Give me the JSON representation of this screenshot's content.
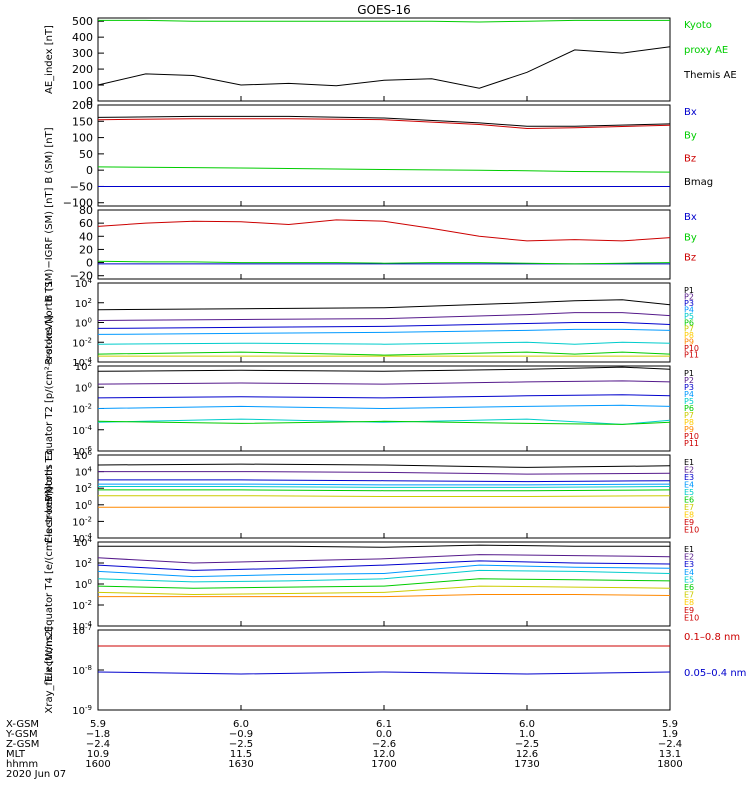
{
  "title": "GOES-16",
  "chart_data": [
    {
      "type": "line",
      "ylabel": "AE_index [nT]",
      "ylim": [
        0,
        520
      ],
      "yticks": [
        "0",
        "100",
        "200",
        "300",
        "400",
        "500"
      ],
      "x": [
        1600,
        1610,
        1620,
        1630,
        1640,
        1650,
        1700,
        1710,
        1720,
        1730,
        1740,
        1750,
        1800
      ],
      "series": [
        {
          "name": "Kyoto proxy AE",
          "color": "#00cc00",
          "values": [
            505,
            505,
            500,
            500,
            500,
            500,
            500,
            500,
            495,
            500,
            505,
            505,
            505
          ]
        },
        {
          "name": "Themis AE",
          "color": "#000000",
          "values": [
            100,
            170,
            160,
            100,
            110,
            95,
            130,
            140,
            80,
            180,
            320,
            300,
            340
          ]
        }
      ],
      "legend": [
        {
          "text": "Kyoto",
          "color": "#00cc00"
        },
        {
          "text": "proxy AE",
          "color": "#00cc00"
        },
        {
          "text": "Themis AE",
          "color": "#000000"
        }
      ]
    },
    {
      "type": "line",
      "ylabel": "B (SM) [nT]",
      "ylim": [
        -110,
        200
      ],
      "yticks": [
        "−100",
        "−50",
        "0",
        "50",
        "100",
        "150",
        "200"
      ],
      "x": [
        1600,
        1620,
        1640,
        1700,
        1720,
        1730,
        1740,
        1800
      ],
      "series": [
        {
          "name": "Bx",
          "color": "#0000cc",
          "values": [
            -50,
            -50,
            -50,
            -50,
            -50,
            -50,
            -50,
            -50
          ]
        },
        {
          "name": "By",
          "color": "#00cc00",
          "values": [
            10,
            8,
            5,
            2,
            0,
            -2,
            -4,
            -6
          ]
        },
        {
          "name": "Bz",
          "color": "#cc0000",
          "values": [
            155,
            158,
            158,
            155,
            140,
            128,
            130,
            138
          ]
        },
        {
          "name": "Bmag",
          "color": "#000000",
          "values": [
            162,
            165,
            165,
            160,
            145,
            135,
            135,
            142
          ]
        }
      ],
      "legend": [
        {
          "text": "Bx",
          "color": "#0000cc"
        },
        {
          "text": "By",
          "color": "#00cc00"
        },
        {
          "text": "Bz",
          "color": "#cc0000"
        },
        {
          "text": "Bmag",
          "color": "#000000"
        }
      ]
    },
    {
      "type": "line",
      "ylabel": "B (SM)−IGRF (SM) [nT]",
      "ylim": [
        -25,
        80
      ],
      "yticks": [
        "−20",
        "0",
        "20",
        "40",
        "60",
        "80"
      ],
      "x": [
        1600,
        1610,
        1620,
        1630,
        1640,
        1650,
        1700,
        1710,
        1720,
        1730,
        1740,
        1750,
        1800
      ],
      "series": [
        {
          "name": "Bx",
          "color": "#0000cc",
          "values": [
            -2,
            -2,
            -2,
            -2,
            -2,
            -2,
            -2,
            -2,
            -2,
            -2,
            -2,
            -2,
            -2
          ]
        },
        {
          "name": "By",
          "color": "#00cc00",
          "values": [
            2,
            1,
            1,
            0,
            0,
            0,
            -1,
            0,
            0,
            -1,
            -2,
            -1,
            0
          ]
        },
        {
          "name": "Bz",
          "color": "#cc0000",
          "values": [
            55,
            60,
            63,
            62,
            58,
            65,
            63,
            52,
            40,
            33,
            35,
            33,
            38
          ]
        }
      ],
      "legend": [
        {
          "text": "Bx",
          "color": "#0000cc"
        },
        {
          "text": "By",
          "color": "#00cc00"
        },
        {
          "text": "Bz",
          "color": "#cc0000"
        }
      ]
    },
    {
      "type": "line",
      "ylabel": "Protons North T1",
      "ylog": true,
      "ylim_exp": [
        -4,
        4
      ],
      "yticks": [
        "10^4",
        "10^2",
        "10^0",
        "10^-2",
        "10^-4"
      ],
      "x": [
        1600,
        1630,
        1700,
        1730,
        1740,
        1750,
        1800
      ],
      "series": [
        {
          "name": "P1",
          "color": "#000000",
          "values_log10": [
            1.3,
            1.4,
            1.5,
            2.0,
            2.2,
            2.3,
            1.8
          ]
        },
        {
          "name": "P2",
          "color": "#551a8b",
          "values_log10": [
            0.2,
            0.3,
            0.4,
            0.8,
            1.0,
            1.0,
            0.7
          ]
        },
        {
          "name": "P3",
          "color": "#0000cc",
          "values_log10": [
            -0.6,
            -0.5,
            -0.4,
            -0.1,
            0.0,
            0.0,
            -0.2
          ]
        },
        {
          "name": "P4",
          "color": "#0099ff",
          "values_log10": [
            -1.2,
            -1.1,
            -1.0,
            -0.8,
            -0.7,
            -0.7,
            -0.8
          ]
        },
        {
          "name": "P5",
          "color": "#00cccc",
          "values_log10": [
            -2.2,
            -2.1,
            -2.2,
            -2.0,
            -2.2,
            -2.0,
            -2.1
          ]
        },
        {
          "name": "P6",
          "color": "#00cc00",
          "values_log10": [
            -3.2,
            -3.0,
            -3.3,
            -3.0,
            -3.2,
            -3.0,
            -3.2
          ]
        },
        {
          "name": "P7",
          "color": "#cccc00",
          "values_log10": [
            -3.4,
            -3.4,
            -3.4,
            -3.4,
            -3.4,
            -3.4,
            -3.4
          ]
        }
      ],
      "legend": [
        {
          "text": "P1",
          "color": "#000000"
        },
        {
          "text": "P2",
          "color": "#551a8b"
        },
        {
          "text": "P3",
          "color": "#0000cc"
        },
        {
          "text": "P4",
          "color": "#0099ff"
        },
        {
          "text": "P5",
          "color": "#00cccc"
        },
        {
          "text": "P6",
          "color": "#00cc00"
        },
        {
          "text": "P7",
          "color": "#cccc00"
        },
        {
          "text": "P8",
          "color": "#ffcc00"
        },
        {
          "text": "P9",
          "color": "#ff8800"
        },
        {
          "text": "P10",
          "color": "#cc0000"
        },
        {
          "text": "P11",
          "color": "#cc0000"
        }
      ]
    },
    {
      "type": "line",
      "ylabel": "Protons Equator T2 [p/(cm²-s-sr-keV)]",
      "ylog": true,
      "ylim_exp": [
        -6,
        2
      ],
      "yticks": [
        "10^2",
        "10^0",
        "10^-2",
        "10^-4",
        "10^-6"
      ],
      "x": [
        1600,
        1630,
        1700,
        1730,
        1750,
        1800
      ],
      "series": [
        {
          "name": "P1",
          "color": "#000000",
          "values_log10": [
            1.5,
            1.6,
            1.5,
            1.7,
            1.9,
            1.7
          ]
        },
        {
          "name": "P2",
          "color": "#551a8b",
          "values_log10": [
            0.3,
            0.4,
            0.3,
            0.5,
            0.6,
            0.5
          ]
        },
        {
          "name": "P3",
          "color": "#0000cc",
          "values_log10": [
            -1.0,
            -0.9,
            -1.0,
            -0.8,
            -0.7,
            -0.8
          ]
        },
        {
          "name": "P4",
          "color": "#0099ff",
          "values_log10": [
            -2.0,
            -1.8,
            -2.0,
            -1.8,
            -1.7,
            -1.8
          ]
        },
        {
          "name": "P5",
          "color": "#00cccc",
          "values_log10": [
            -3.3,
            -3.0,
            -3.3,
            -3.0,
            -3.5,
            -3.1
          ]
        },
        {
          "name": "P6",
          "color": "#00cc00",
          "values_log10": [
            -3.2,
            -3.4,
            -3.2,
            -3.4,
            -3.5,
            -3.3
          ]
        }
      ],
      "legend": [
        {
          "text": "P1",
          "color": "#000000"
        },
        {
          "text": "P2",
          "color": "#551a8b"
        },
        {
          "text": "P3",
          "color": "#0000cc"
        },
        {
          "text": "P4",
          "color": "#0099ff"
        },
        {
          "text": "P5",
          "color": "#00cccc"
        },
        {
          "text": "P6",
          "color": "#00cc00"
        },
        {
          "text": "P7",
          "color": "#cccc00"
        },
        {
          "text": "P8",
          "color": "#ffcc00"
        },
        {
          "text": "P9",
          "color": "#ff8800"
        },
        {
          "text": "P10",
          "color": "#cc0000"
        },
        {
          "text": "P11",
          "color": "#cc0000"
        }
      ]
    },
    {
      "type": "line",
      "ylabel": "Electrons North T3",
      "ylog": true,
      "ylim_exp": [
        -4,
        6
      ],
      "yticks": [
        "10^6",
        "10^4",
        "10^2",
        "10^0",
        "10^-2",
        "10^-4"
      ],
      "x": [
        1600,
        1630,
        1700,
        1730,
        1800
      ],
      "series": [
        {
          "name": "E1",
          "color": "#000000",
          "values_log10": [
            4.8,
            4.9,
            4.8,
            4.5,
            4.7
          ]
        },
        {
          "name": "E2",
          "color": "#551a8b",
          "values_log10": [
            4.0,
            4.0,
            3.9,
            3.7,
            3.8
          ]
        },
        {
          "name": "E3",
          "color": "#0000cc",
          "values_log10": [
            3.0,
            3.0,
            2.9,
            2.8,
            2.9
          ]
        },
        {
          "name": "E4",
          "color": "#0099ff",
          "values_log10": [
            2.5,
            2.5,
            2.4,
            2.4,
            2.5
          ]
        },
        {
          "name": "E5",
          "color": "#00cccc",
          "values_log10": [
            2.2,
            2.2,
            2.1,
            2.1,
            2.2
          ]
        },
        {
          "name": "E6",
          "color": "#00cc00",
          "values_log10": [
            1.8,
            1.8,
            1.7,
            1.7,
            1.8
          ]
        },
        {
          "name": "E7",
          "color": "#cccc00",
          "values_log10": [
            1.1,
            1.1,
            1.0,
            1.0,
            1.1
          ]
        },
        {
          "name": "E8",
          "color": "#ff8800",
          "values_log10": [
            -0.3,
            -0.3,
            -0.3,
            -0.3,
            -0.3
          ]
        }
      ],
      "legend": [
        {
          "text": "E1",
          "color": "#000000"
        },
        {
          "text": "E2",
          "color": "#551a8b"
        },
        {
          "text": "E3",
          "color": "#0000cc"
        },
        {
          "text": "E4",
          "color": "#0099ff"
        },
        {
          "text": "E5",
          "color": "#00cccc"
        },
        {
          "text": "E6",
          "color": "#00cc00"
        },
        {
          "text": "E7",
          "color": "#cccc00"
        },
        {
          "text": "E8",
          "color": "#ffcc00"
        },
        {
          "text": "E9",
          "color": "#cc0000"
        },
        {
          "text": "E10",
          "color": "#cc0000"
        }
      ]
    },
    {
      "type": "line",
      "ylabel": "Electrons Equator T4 [e/(cm²-s-sr-keV)]",
      "ylog": true,
      "ylim_exp": [
        -4,
        4
      ],
      "yticks": [
        "10^4",
        "10^2",
        "10^0",
        "10^-2",
        "10^-4"
      ],
      "x": [
        1600,
        1620,
        1640,
        1700,
        1720,
        1740,
        1800
      ],
      "series": [
        {
          "name": "E1",
          "color": "#000000",
          "values_log10": [
            3.6,
            3.6,
            3.6,
            3.5,
            3.7,
            3.6,
            3.6
          ]
        },
        {
          "name": "E2",
          "color": "#551a8b",
          "values_log10": [
            2.5,
            2.0,
            2.2,
            2.4,
            2.8,
            2.7,
            2.6
          ]
        },
        {
          "name": "E3",
          "color": "#0000cc",
          "values_log10": [
            1.8,
            1.3,
            1.5,
            1.8,
            2.2,
            2.0,
            1.9
          ]
        },
        {
          "name": "E4",
          "color": "#0099ff",
          "values_log10": [
            1.2,
            0.7,
            0.9,
            1.0,
            1.8,
            1.6,
            1.5
          ]
        },
        {
          "name": "E5",
          "color": "#00cccc",
          "values_log10": [
            0.5,
            0.2,
            0.3,
            0.5,
            1.3,
            1.2,
            1.0
          ]
        },
        {
          "name": "E6",
          "color": "#00cc00",
          "values_log10": [
            -0.2,
            -0.4,
            -0.3,
            -0.2,
            0.5,
            0.4,
            0.3
          ]
        },
        {
          "name": "E7",
          "color": "#cccc00",
          "values_log10": [
            -0.8,
            -1.0,
            -0.9,
            -0.8,
            -0.2,
            -0.3,
            -0.4
          ]
        },
        {
          "name": "E8",
          "color": "#ff8800",
          "values_log10": [
            -1.2,
            -1.2,
            -1.2,
            -1.2,
            -1.0,
            -1.0,
            -1.1
          ]
        }
      ],
      "legend": [
        {
          "text": "E1",
          "color": "#000000"
        },
        {
          "text": "E2",
          "color": "#551a8b"
        },
        {
          "text": "E3",
          "color": "#0000cc"
        },
        {
          "text": "E4",
          "color": "#0099ff"
        },
        {
          "text": "E5",
          "color": "#00cccc"
        },
        {
          "text": "E6",
          "color": "#00cc00"
        },
        {
          "text": "E7",
          "color": "#cccc00"
        },
        {
          "text": "E8",
          "color": "#ffcc00"
        },
        {
          "text": "E9",
          "color": "#cc0000"
        },
        {
          "text": "E10",
          "color": "#cc0000"
        }
      ]
    },
    {
      "type": "line",
      "ylabel": "Xray_flux [W/m2]",
      "ylog": true,
      "ylim_exp": [
        -9,
        -7
      ],
      "yticks": [
        "10^-7",
        "10^-8",
        "10^-9"
      ],
      "x": [
        1600,
        1630,
        1700,
        1730,
        1800
      ],
      "series": [
        {
          "name": "0.1–0.8 nm",
          "color": "#cc0000",
          "values_log10": [
            -7.4,
            -7.4,
            -7.4,
            -7.4,
            -7.4
          ]
        },
        {
          "name": "0.05–0.4 nm",
          "color": "#0000cc",
          "values_log10": [
            -8.05,
            -8.1,
            -8.05,
            -8.1,
            -8.05
          ]
        }
      ],
      "legend": [
        {
          "text": "0.1–0.8 nm",
          "color": "#cc0000"
        },
        {
          "text": "0.05–0.4 nm",
          "color": "#0000cc"
        }
      ]
    }
  ],
  "ephemeris": {
    "row_labels": [
      "X-GSM",
      "Y-GSM",
      "Z-GSM",
      "MLT",
      "hhmm"
    ],
    "date": "2020 Jun 07",
    "columns": [
      [
        "5.9",
        "−1.8",
        "−2.4",
        "10.9",
        "1600"
      ],
      [
        "6.0",
        "−0.9",
        "−2.5",
        "11.5",
        "1630"
      ],
      [
        "6.1",
        "0.0",
        "−2.6",
        "12.0",
        "1700"
      ],
      [
        "6.0",
        "1.0",
        "−2.5",
        "12.6",
        "1730"
      ],
      [
        "5.9",
        "1.9",
        "−2.4",
        "13.1",
        "1800"
      ]
    ]
  }
}
